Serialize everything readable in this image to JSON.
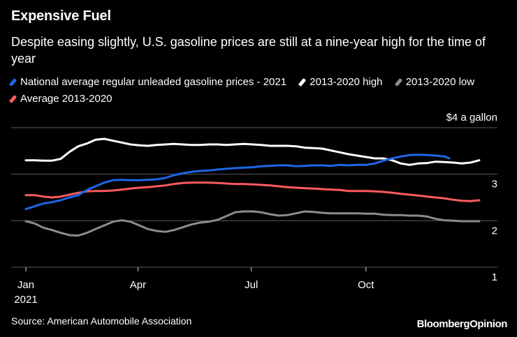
{
  "header": {
    "title": "Expensive Fuel",
    "subtitle": "Despite easing slightly, U.S. gasoline prices are still at a nine-year high for the time of year"
  },
  "footer": {
    "source": "Source: American Automobile Association",
    "brand_main": "Bloomberg",
    "brand_sub": "Opinion"
  },
  "colors": {
    "background": "#000000",
    "grid": "#5a5a5a",
    "axis_text": "#ffffff"
  },
  "chart_data": {
    "type": "line",
    "title": "Expensive Fuel",
    "xlabel": "",
    "ylabel": "$4 a gallon",
    "ylim": [
      1,
      4
    ],
    "xlim_day": [
      0,
      364
    ],
    "y_ticks": [
      {
        "value": 4,
        "label": "$4 a gallon"
      },
      {
        "value": 3,
        "label": "3"
      },
      {
        "value": 2,
        "label": "2"
      },
      {
        "value": 1,
        "label": "1"
      }
    ],
    "x_ticks": [
      {
        "day": 0,
        "label": "Jan",
        "sublabel": "2021"
      },
      {
        "day": 90,
        "label": "Apr",
        "sublabel": ""
      },
      {
        "day": 181,
        "label": "Jul",
        "sublabel": ""
      },
      {
        "day": 273,
        "label": "Oct",
        "sublabel": ""
      }
    ],
    "legend_position": "top",
    "series": [
      {
        "name": "National average regular unleaded gasoline prices - 2021",
        "color": "#1f66e5",
        "x": [
          0,
          7,
          14,
          21,
          28,
          35,
          42,
          49,
          56,
          63,
          70,
          77,
          84,
          91,
          98,
          105,
          112,
          119,
          126,
          133,
          140,
          147,
          154,
          161,
          168,
          175,
          182,
          189,
          196,
          203,
          210,
          217,
          224,
          231,
          238,
          245,
          252,
          259,
          266,
          273,
          280,
          287,
          294,
          301,
          308,
          315,
          322,
          329,
          336,
          340
        ],
        "values": [
          2.25,
          2.31,
          2.37,
          2.4,
          2.44,
          2.5,
          2.55,
          2.66,
          2.74,
          2.82,
          2.87,
          2.88,
          2.87,
          2.87,
          2.88,
          2.89,
          2.92,
          2.98,
          3.02,
          3.05,
          3.07,
          3.08,
          3.1,
          3.12,
          3.13,
          3.14,
          3.15,
          3.17,
          3.18,
          3.19,
          3.19,
          3.17,
          3.18,
          3.19,
          3.19,
          3.18,
          3.2,
          3.19,
          3.2,
          3.2,
          3.23,
          3.29,
          3.34,
          3.38,
          3.41,
          3.42,
          3.41,
          3.4,
          3.38,
          3.34
        ]
      },
      {
        "name": "2013-2020 high",
        "color": "#ffffff",
        "x": [
          0,
          7,
          14,
          21,
          28,
          35,
          42,
          49,
          56,
          63,
          70,
          77,
          84,
          91,
          98,
          105,
          112,
          119,
          126,
          133,
          140,
          147,
          154,
          161,
          168,
          175,
          182,
          189,
          196,
          203,
          210,
          217,
          224,
          231,
          238,
          245,
          252,
          259,
          266,
          273,
          280,
          287,
          294,
          301,
          308,
          315,
          322,
          329,
          336,
          343,
          350,
          357,
          364
        ],
        "values": [
          3.3,
          3.3,
          3.29,
          3.29,
          3.33,
          3.48,
          3.6,
          3.66,
          3.74,
          3.76,
          3.72,
          3.68,
          3.64,
          3.62,
          3.61,
          3.63,
          3.64,
          3.65,
          3.64,
          3.63,
          3.63,
          3.64,
          3.64,
          3.63,
          3.64,
          3.65,
          3.64,
          3.63,
          3.61,
          3.61,
          3.61,
          3.6,
          3.57,
          3.56,
          3.55,
          3.51,
          3.47,
          3.43,
          3.4,
          3.37,
          3.34,
          3.34,
          3.3,
          3.23,
          3.2,
          3.23,
          3.24,
          3.27,
          3.26,
          3.25,
          3.23,
          3.25,
          3.3
        ]
      },
      {
        "name": "2013-2020 low",
        "color": "#8c8c8c",
        "x": [
          0,
          7,
          14,
          21,
          28,
          35,
          42,
          49,
          56,
          63,
          70,
          77,
          84,
          91,
          98,
          105,
          112,
          119,
          126,
          133,
          140,
          147,
          154,
          161,
          168,
          175,
          182,
          189,
          196,
          203,
          210,
          217,
          224,
          231,
          238,
          245,
          252,
          259,
          266,
          273,
          280,
          287,
          294,
          301,
          308,
          315,
          322,
          329,
          336,
          343,
          350,
          357,
          364
        ],
        "values": [
          1.99,
          1.94,
          1.85,
          1.8,
          1.74,
          1.69,
          1.68,
          1.74,
          1.82,
          1.9,
          1.98,
          2.01,
          1.98,
          1.9,
          1.82,
          1.78,
          1.76,
          1.8,
          1.86,
          1.92,
          1.96,
          1.98,
          2.02,
          2.1,
          2.18,
          2.2,
          2.2,
          2.18,
          2.14,
          2.11,
          2.12,
          2.16,
          2.2,
          2.19,
          2.17,
          2.16,
          2.16,
          2.16,
          2.16,
          2.15,
          2.15,
          2.13,
          2.12,
          2.12,
          2.11,
          2.11,
          2.09,
          2.04,
          2.01,
          2.0,
          1.99,
          1.99,
          1.99
        ]
      },
      {
        "name": "Average 2013-2020",
        "color": "#ff5a5f",
        "x": [
          0,
          7,
          14,
          21,
          28,
          35,
          42,
          49,
          56,
          63,
          70,
          77,
          84,
          91,
          98,
          105,
          112,
          119,
          126,
          133,
          140,
          147,
          154,
          161,
          168,
          175,
          182,
          189,
          196,
          203,
          210,
          217,
          224,
          231,
          238,
          245,
          252,
          259,
          266,
          273,
          280,
          287,
          294,
          301,
          308,
          315,
          322,
          329,
          336,
          343,
          350,
          357,
          364
        ],
        "values": [
          2.55,
          2.55,
          2.52,
          2.5,
          2.52,
          2.56,
          2.6,
          2.63,
          2.64,
          2.64,
          2.65,
          2.67,
          2.69,
          2.71,
          2.72,
          2.74,
          2.76,
          2.79,
          2.81,
          2.82,
          2.82,
          2.82,
          2.81,
          2.8,
          2.79,
          2.79,
          2.78,
          2.77,
          2.76,
          2.74,
          2.72,
          2.71,
          2.7,
          2.69,
          2.68,
          2.67,
          2.66,
          2.64,
          2.64,
          2.64,
          2.63,
          2.62,
          2.6,
          2.58,
          2.56,
          2.54,
          2.52,
          2.5,
          2.48,
          2.45,
          2.43,
          2.42,
          2.44
        ]
      }
    ]
  }
}
